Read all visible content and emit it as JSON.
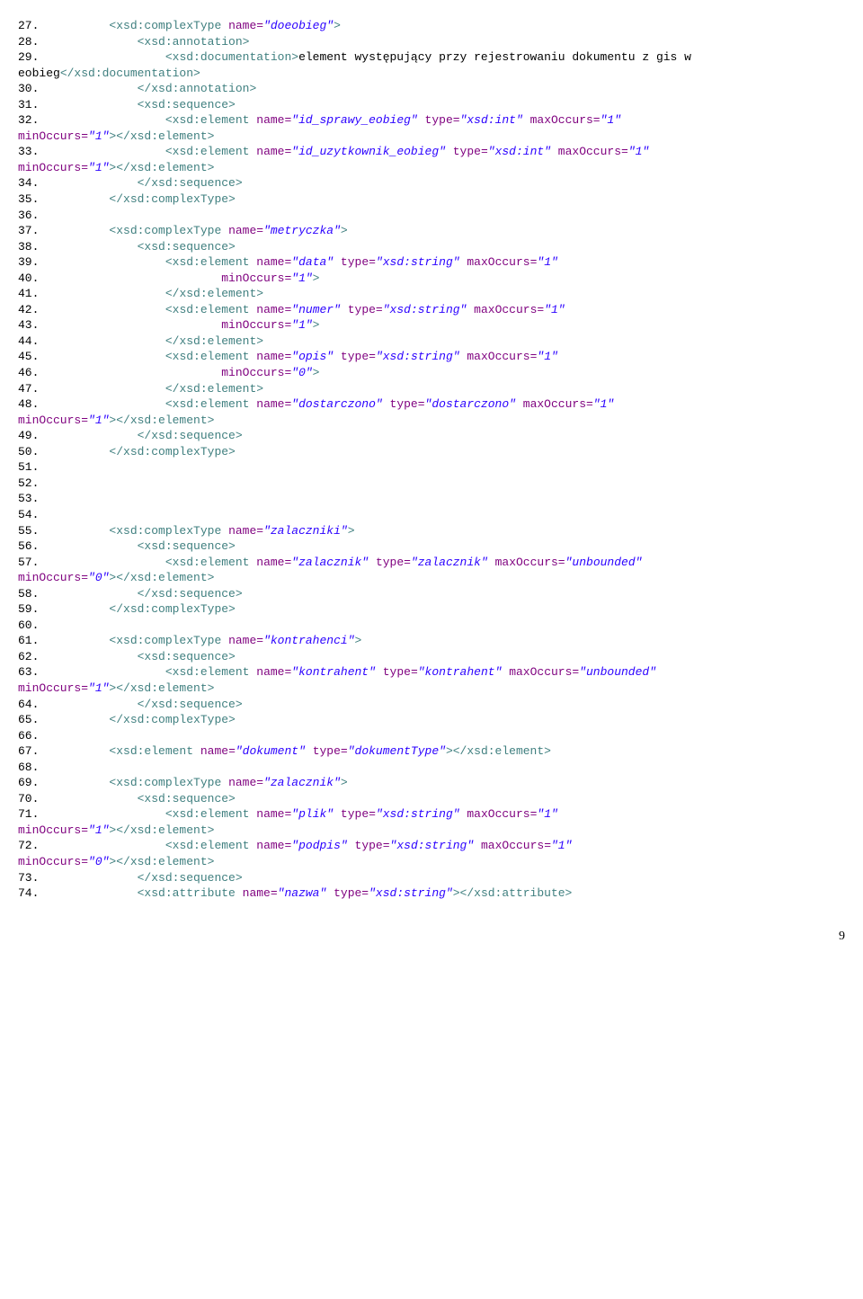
{
  "pageNumber": "9",
  "lines": [
    {
      "n": "27.",
      "indent": 10,
      "tokens": [
        {
          "t": "tag",
          "v": "<xsd:complexType"
        },
        {
          "t": "sp",
          "v": " "
        },
        {
          "t": "attr-name",
          "v": "name="
        },
        {
          "t": "attr-val",
          "v": "\"doeobieg\""
        },
        {
          "t": "tag",
          "v": ">"
        }
      ]
    },
    {
      "n": "28.",
      "indent": 14,
      "tokens": [
        {
          "t": "tag",
          "v": "<xsd:annotation>"
        }
      ]
    },
    {
      "n": "29.",
      "indent": 18,
      "tokens": [
        {
          "t": "tag",
          "v": "<xsd:documentation>"
        },
        {
          "t": "text",
          "v": "element występujący przy rejestrowaniu dokumentu z gis w eobieg"
        },
        {
          "t": "tag",
          "v": "</xsd:documentation>"
        }
      ]
    },
    {
      "n": "30.",
      "indent": 14,
      "tokens": [
        {
          "t": "tag",
          "v": "</xsd:annotation>"
        }
      ]
    },
    {
      "n": "31.",
      "indent": 14,
      "tokens": [
        {
          "t": "tag",
          "v": "<xsd:sequence>"
        }
      ]
    },
    {
      "n": "32.",
      "indent": 18,
      "tokens": [
        {
          "t": "tag",
          "v": "<xsd:element"
        },
        {
          "t": "sp",
          "v": " "
        },
        {
          "t": "attr-name",
          "v": "name="
        },
        {
          "t": "attr-val",
          "v": "\"id_sprawy_eobieg\""
        },
        {
          "t": "sp",
          "v": " "
        },
        {
          "t": "attr-name",
          "v": "type="
        },
        {
          "t": "attr-val",
          "v": "\"xsd:int\""
        },
        {
          "t": "sp",
          "v": " "
        },
        {
          "t": "attr-name",
          "v": "maxOccurs="
        },
        {
          "t": "attr-val",
          "v": "\"1\""
        },
        {
          "t": "sp",
          "v": " "
        },
        {
          "t": "attr-name",
          "v": "minOccurs="
        },
        {
          "t": "attr-val",
          "v": "\"1\""
        },
        {
          "t": "tag",
          "v": "></xsd:element>"
        }
      ]
    },
    {
      "n": "33.",
      "indent": 18,
      "tokens": [
        {
          "t": "tag",
          "v": "<xsd:element"
        },
        {
          "t": "sp",
          "v": " "
        },
        {
          "t": "attr-name",
          "v": "name="
        },
        {
          "t": "attr-val",
          "v": "\"id_uzytkownik_eobieg\""
        },
        {
          "t": "sp",
          "v": " "
        },
        {
          "t": "attr-name",
          "v": "type="
        },
        {
          "t": "attr-val",
          "v": "\"xsd:int\""
        },
        {
          "t": "sp",
          "v": " "
        },
        {
          "t": "attr-name",
          "v": "maxOccurs="
        },
        {
          "t": "attr-val",
          "v": "\"1\""
        },
        {
          "t": "sp",
          "v": " "
        },
        {
          "t": "attr-name",
          "v": "minOccurs="
        },
        {
          "t": "attr-val",
          "v": "\"1\""
        },
        {
          "t": "tag",
          "v": "></xsd:element>"
        }
      ]
    },
    {
      "n": "34.",
      "indent": 14,
      "tokens": [
        {
          "t": "tag",
          "v": "</xsd:sequence>"
        }
      ]
    },
    {
      "n": "35.",
      "indent": 10,
      "tokens": [
        {
          "t": "tag",
          "v": "</xsd:complexType>"
        }
      ]
    },
    {
      "n": "36.",
      "indent": 0,
      "tokens": []
    },
    {
      "n": "37.",
      "indent": 10,
      "tokens": [
        {
          "t": "tag",
          "v": "<xsd:complexType"
        },
        {
          "t": "sp",
          "v": " "
        },
        {
          "t": "attr-name",
          "v": "name="
        },
        {
          "t": "attr-val",
          "v": "\"metryczka\""
        },
        {
          "t": "tag",
          "v": ">"
        }
      ]
    },
    {
      "n": "38.",
      "indent": 14,
      "tokens": [
        {
          "t": "tag",
          "v": "<xsd:sequence>"
        }
      ]
    },
    {
      "n": "39.",
      "indent": 18,
      "tokens": [
        {
          "t": "tag",
          "v": "<xsd:element"
        },
        {
          "t": "sp",
          "v": " "
        },
        {
          "t": "attr-name",
          "v": "name="
        },
        {
          "t": "attr-val",
          "v": "\"data\""
        },
        {
          "t": "sp",
          "v": " "
        },
        {
          "t": "attr-name",
          "v": "type="
        },
        {
          "t": "attr-val",
          "v": "\"xsd:string\""
        },
        {
          "t": "sp",
          "v": " "
        },
        {
          "t": "attr-name",
          "v": "maxOccurs="
        },
        {
          "t": "attr-val",
          "v": "\"1\""
        }
      ]
    },
    {
      "n": "40.",
      "indent": 26,
      "tokens": [
        {
          "t": "attr-name",
          "v": "minOccurs="
        },
        {
          "t": "attr-val",
          "v": "\"1\""
        },
        {
          "t": "tag",
          "v": ">"
        }
      ]
    },
    {
      "n": "41.",
      "indent": 18,
      "tokens": [
        {
          "t": "tag",
          "v": "</xsd:element>"
        }
      ]
    },
    {
      "n": "42.",
      "indent": 18,
      "tokens": [
        {
          "t": "tag",
          "v": "<xsd:element"
        },
        {
          "t": "sp",
          "v": " "
        },
        {
          "t": "attr-name",
          "v": "name="
        },
        {
          "t": "attr-val",
          "v": "\"numer\""
        },
        {
          "t": "sp",
          "v": " "
        },
        {
          "t": "attr-name",
          "v": "type="
        },
        {
          "t": "attr-val",
          "v": "\"xsd:string\""
        },
        {
          "t": "sp",
          "v": " "
        },
        {
          "t": "attr-name",
          "v": "maxOccurs="
        },
        {
          "t": "attr-val",
          "v": "\"1\""
        }
      ]
    },
    {
      "n": "43.",
      "indent": 26,
      "tokens": [
        {
          "t": "attr-name",
          "v": "minOccurs="
        },
        {
          "t": "attr-val",
          "v": "\"1\""
        },
        {
          "t": "tag",
          "v": ">"
        }
      ]
    },
    {
      "n": "44.",
      "indent": 18,
      "tokens": [
        {
          "t": "tag",
          "v": "</xsd:element>"
        }
      ]
    },
    {
      "n": "45.",
      "indent": 18,
      "tokens": [
        {
          "t": "tag",
          "v": "<xsd:element"
        },
        {
          "t": "sp",
          "v": " "
        },
        {
          "t": "attr-name",
          "v": "name="
        },
        {
          "t": "attr-val",
          "v": "\"opis\""
        },
        {
          "t": "sp",
          "v": " "
        },
        {
          "t": "attr-name",
          "v": "type="
        },
        {
          "t": "attr-val",
          "v": "\"xsd:string\""
        },
        {
          "t": "sp",
          "v": " "
        },
        {
          "t": "attr-name",
          "v": "maxOccurs="
        },
        {
          "t": "attr-val",
          "v": "\"1\""
        }
      ]
    },
    {
      "n": "46.",
      "indent": 26,
      "tokens": [
        {
          "t": "attr-name",
          "v": "minOccurs="
        },
        {
          "t": "attr-val",
          "v": "\"0\""
        },
        {
          "t": "tag",
          "v": ">"
        }
      ]
    },
    {
      "n": "47.",
      "indent": 18,
      "tokens": [
        {
          "t": "tag",
          "v": "</xsd:element>"
        }
      ]
    },
    {
      "n": "48.",
      "indent": 18,
      "tokens": [
        {
          "t": "tag",
          "v": "<xsd:element"
        },
        {
          "t": "sp",
          "v": " "
        },
        {
          "t": "attr-name",
          "v": "name="
        },
        {
          "t": "attr-val",
          "v": "\"dostarczono\""
        },
        {
          "t": "sp",
          "v": " "
        },
        {
          "t": "attr-name",
          "v": "type="
        },
        {
          "t": "attr-val",
          "v": "\"dostarczono\""
        },
        {
          "t": "sp",
          "v": " "
        },
        {
          "t": "attr-name",
          "v": "maxOccurs="
        },
        {
          "t": "attr-val",
          "v": "\"1\""
        },
        {
          "t": "sp",
          "v": " "
        },
        {
          "t": "attr-name",
          "v": "minOccurs="
        },
        {
          "t": "attr-val",
          "v": "\"1\""
        },
        {
          "t": "tag",
          "v": "></xsd:element>"
        }
      ]
    },
    {
      "n": "49.",
      "indent": 14,
      "tokens": [
        {
          "t": "tag",
          "v": "</xsd:sequence>"
        }
      ]
    },
    {
      "n": "50.",
      "indent": 10,
      "tokens": [
        {
          "t": "tag",
          "v": "</xsd:complexType>"
        }
      ]
    },
    {
      "n": "51.",
      "indent": 0,
      "tokens": []
    },
    {
      "n": "52.",
      "indent": 0,
      "tokens": []
    },
    {
      "n": "53.",
      "indent": 0,
      "tokens": []
    },
    {
      "n": "54.",
      "indent": 0,
      "tokens": []
    },
    {
      "n": "55.",
      "indent": 10,
      "tokens": [
        {
          "t": "tag",
          "v": "<xsd:complexType"
        },
        {
          "t": "sp",
          "v": " "
        },
        {
          "t": "attr-name",
          "v": "name="
        },
        {
          "t": "attr-val",
          "v": "\"zalaczniki\""
        },
        {
          "t": "tag",
          "v": ">"
        }
      ]
    },
    {
      "n": "56.",
      "indent": 14,
      "tokens": [
        {
          "t": "tag",
          "v": "<xsd:sequence>"
        }
      ]
    },
    {
      "n": "57.",
      "indent": 18,
      "tokens": [
        {
          "t": "tag",
          "v": "<xsd:element"
        },
        {
          "t": "sp",
          "v": " "
        },
        {
          "t": "attr-name",
          "v": "name="
        },
        {
          "t": "attr-val",
          "v": "\"zalacznik\""
        },
        {
          "t": "sp",
          "v": " "
        },
        {
          "t": "attr-name",
          "v": "type="
        },
        {
          "t": "attr-val",
          "v": "\"zalacznik\""
        },
        {
          "t": "sp",
          "v": " "
        },
        {
          "t": "attr-name",
          "v": "maxOccurs="
        },
        {
          "t": "attr-val",
          "v": "\"unbounded\""
        },
        {
          "t": "sp",
          "v": " "
        },
        {
          "t": "attr-name",
          "v": "minOccurs="
        },
        {
          "t": "attr-val",
          "v": "\"0\""
        },
        {
          "t": "tag",
          "v": "></xsd:element>"
        }
      ]
    },
    {
      "n": "58.",
      "indent": 14,
      "tokens": [
        {
          "t": "tag",
          "v": "</xsd:sequence>"
        }
      ]
    },
    {
      "n": "59.",
      "indent": 10,
      "tokens": [
        {
          "t": "tag",
          "v": "</xsd:complexType>"
        }
      ]
    },
    {
      "n": "60.",
      "indent": 0,
      "tokens": []
    },
    {
      "n": "61.",
      "indent": 10,
      "tokens": [
        {
          "t": "tag",
          "v": "<xsd:complexType"
        },
        {
          "t": "sp",
          "v": " "
        },
        {
          "t": "attr-name",
          "v": "name="
        },
        {
          "t": "attr-val",
          "v": "\"kontrahenci\""
        },
        {
          "t": "tag",
          "v": ">"
        }
      ]
    },
    {
      "n": "62.",
      "indent": 14,
      "tokens": [
        {
          "t": "tag",
          "v": "<xsd:sequence>"
        }
      ]
    },
    {
      "n": "63.",
      "indent": 18,
      "tokens": [
        {
          "t": "tag",
          "v": "<xsd:element"
        },
        {
          "t": "sp",
          "v": " "
        },
        {
          "t": "attr-name",
          "v": "name="
        },
        {
          "t": "attr-val",
          "v": "\"kontrahent\""
        },
        {
          "t": "sp",
          "v": " "
        },
        {
          "t": "attr-name",
          "v": "type="
        },
        {
          "t": "attr-val",
          "v": "\"kontrahent\""
        },
        {
          "t": "sp",
          "v": " "
        },
        {
          "t": "attr-name",
          "v": "maxOccurs="
        },
        {
          "t": "attr-val",
          "v": "\"unbounded\""
        },
        {
          "t": "sp",
          "v": " "
        },
        {
          "t": "attr-name",
          "v": "minOccurs="
        },
        {
          "t": "attr-val",
          "v": "\"1\""
        },
        {
          "t": "tag",
          "v": "></xsd:element>"
        }
      ]
    },
    {
      "n": "64.",
      "indent": 14,
      "tokens": [
        {
          "t": "tag",
          "v": "</xsd:sequence>"
        }
      ]
    },
    {
      "n": "65.",
      "indent": 10,
      "tokens": [
        {
          "t": "tag",
          "v": "</xsd:complexType>"
        }
      ]
    },
    {
      "n": "66.",
      "indent": 0,
      "tokens": []
    },
    {
      "n": "67.",
      "indent": 10,
      "tokens": [
        {
          "t": "tag",
          "v": "<xsd:element"
        },
        {
          "t": "sp",
          "v": " "
        },
        {
          "t": "attr-name",
          "v": "name="
        },
        {
          "t": "attr-val",
          "v": "\"dokument\""
        },
        {
          "t": "sp",
          "v": " "
        },
        {
          "t": "attr-name",
          "v": "type="
        },
        {
          "t": "attr-val",
          "v": "\"dokumentType\""
        },
        {
          "t": "tag",
          "v": "></xsd:element>"
        }
      ]
    },
    {
      "n": "68.",
      "indent": 0,
      "tokens": []
    },
    {
      "n": "69.",
      "indent": 10,
      "tokens": [
        {
          "t": "tag",
          "v": "<xsd:complexType"
        },
        {
          "t": "sp",
          "v": " "
        },
        {
          "t": "attr-name",
          "v": "name="
        },
        {
          "t": "attr-val",
          "v": "\"zalacznik\""
        },
        {
          "t": "tag",
          "v": ">"
        }
      ]
    },
    {
      "n": "70.",
      "indent": 14,
      "tokens": [
        {
          "t": "tag",
          "v": "<xsd:sequence>"
        }
      ]
    },
    {
      "n": "71.",
      "indent": 18,
      "tokens": [
        {
          "t": "tag",
          "v": "<xsd:element"
        },
        {
          "t": "sp",
          "v": " "
        },
        {
          "t": "attr-name",
          "v": "name="
        },
        {
          "t": "attr-val",
          "v": "\"plik\""
        },
        {
          "t": "sp",
          "v": " "
        },
        {
          "t": "attr-name",
          "v": "type="
        },
        {
          "t": "attr-val",
          "v": "\"xsd:string\""
        },
        {
          "t": "sp",
          "v": " "
        },
        {
          "t": "attr-name",
          "v": "maxOccurs="
        },
        {
          "t": "attr-val",
          "v": "\"1\""
        },
        {
          "t": "sp",
          "v": " "
        },
        {
          "t": "attr-name",
          "v": "minOccurs="
        },
        {
          "t": "attr-val",
          "v": "\"1\""
        },
        {
          "t": "tag",
          "v": "></xsd:element>"
        }
      ]
    },
    {
      "n": "72.",
      "indent": 18,
      "tokens": [
        {
          "t": "tag",
          "v": "<xsd:element"
        },
        {
          "t": "sp",
          "v": " "
        },
        {
          "t": "attr-name",
          "v": "name="
        },
        {
          "t": "attr-val",
          "v": "\"podpis\""
        },
        {
          "t": "sp",
          "v": " "
        },
        {
          "t": "attr-name",
          "v": "type="
        },
        {
          "t": "attr-val",
          "v": "\"xsd:string\""
        },
        {
          "t": "sp",
          "v": " "
        },
        {
          "t": "attr-name",
          "v": "maxOccurs="
        },
        {
          "t": "attr-val",
          "v": "\"1\""
        },
        {
          "t": "sp",
          "v": " "
        },
        {
          "t": "attr-name",
          "v": "minOccurs="
        },
        {
          "t": "attr-val",
          "v": "\"0\""
        },
        {
          "t": "tag",
          "v": "></xsd:element>"
        }
      ]
    },
    {
      "n": "73.",
      "indent": 14,
      "tokens": [
        {
          "t": "tag",
          "v": "</xsd:sequence>"
        }
      ]
    },
    {
      "n": "74.",
      "indent": 14,
      "tokens": [
        {
          "t": "tag",
          "v": "<xsd:attribute"
        },
        {
          "t": "sp",
          "v": " "
        },
        {
          "t": "attr-name",
          "v": "name="
        },
        {
          "t": "attr-val",
          "v": "\"nazwa\""
        },
        {
          "t": "sp",
          "v": " "
        },
        {
          "t": "attr-name",
          "v": "type="
        },
        {
          "t": "attr-val",
          "v": "\"xsd:string\""
        },
        {
          "t": "tag",
          "v": "></xsd:attribute>"
        }
      ]
    }
  ]
}
